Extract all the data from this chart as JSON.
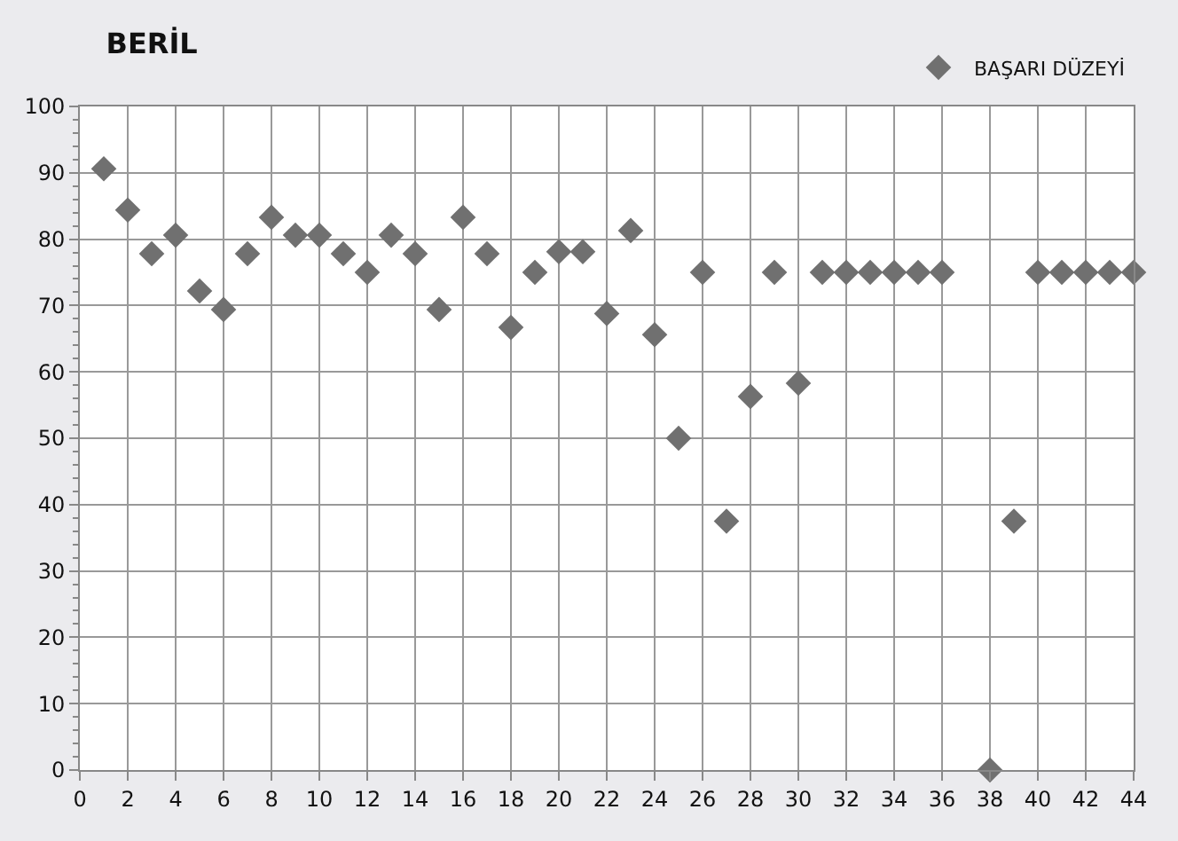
{
  "chart_data": {
    "type": "scatter",
    "title": "BERİL",
    "x": [
      1,
      2,
      3,
      4,
      5,
      6,
      7,
      8,
      9,
      10,
      11,
      12,
      13,
      14,
      15,
      16,
      17,
      18,
      19,
      20,
      21,
      22,
      23,
      24,
      25,
      26,
      27,
      28,
      29,
      30,
      31,
      32,
      33,
      34,
      35,
      36,
      38,
      39,
      40,
      41,
      42,
      43,
      44
    ],
    "series": [
      {
        "name": "BAŞARI DÜZEYİ",
        "color": "#707070",
        "values": [
          90.6,
          84.4,
          77.8,
          80.6,
          72.2,
          69.4,
          77.8,
          83.3,
          80.6,
          80.6,
          77.8,
          75,
          80.6,
          77.8,
          69.4,
          83.3,
          77.8,
          66.7,
          75,
          78.1,
          78.1,
          68.8,
          81.3,
          65.6,
          50,
          75,
          37.5,
          56.3,
          75,
          58.3,
          75,
          75,
          75,
          75,
          75,
          75,
          0,
          37.5,
          75,
          75,
          75,
          75,
          75
        ]
      }
    ],
    "xlim": [
      0,
      44
    ],
    "xticks": [
      0,
      2,
      4,
      6,
      8,
      10,
      12,
      14,
      16,
      18,
      20,
      22,
      24,
      26,
      28,
      30,
      32,
      34,
      36,
      38,
      40,
      42,
      44
    ],
    "ylim": [
      0,
      100
    ],
    "yticks": [
      0,
      10,
      20,
      30,
      40,
      50,
      60,
      70,
      80,
      90,
      100
    ],
    "grid": true,
    "legend": "top right",
    "marker": "diamond"
  }
}
